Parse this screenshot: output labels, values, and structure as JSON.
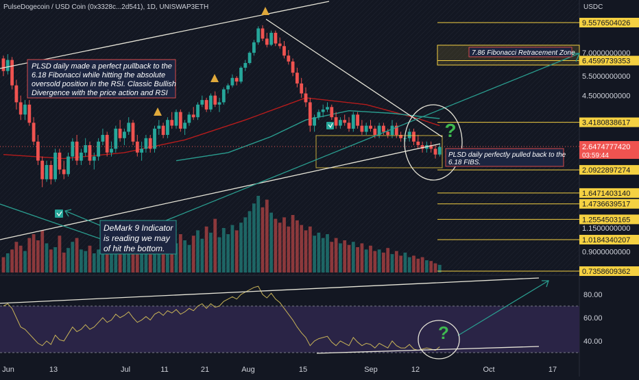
{
  "header": {
    "title": "PulseDogecoin / USD Coin (0x3328c...2d541), 1D, UNISWAP3ETH",
    "currency": "USDC"
  },
  "colors": {
    "background": "#131722",
    "up": "#26a69a",
    "down": "#ef5350",
    "fib_line": "#f5d142",
    "trend_line": "#e8e6d9",
    "ma_red": "#b71c1c",
    "ma_teal": "#2a9d8f",
    "rsi": "#c9b458",
    "rsi_band": "#2a2446",
    "annotation_bg": "#1c2540",
    "annotation_border": "#d84a4a",
    "price_tag": "#ef5350"
  },
  "annotations": {
    "note1": [
      "PLSD daily made a perfect pullback to the",
      "6.18 Fibonacci while hitting the absolute",
      "oversold position in the RSI. Classic Bullish",
      "Divergence with the price action and RSI"
    ],
    "note2": [
      "DeMark 9 Indicator",
      "is reading we may",
      "of hit the bottom."
    ],
    "note3": [
      "PLSD daily perfectly pulled back to the",
      "6.18 FIBS."
    ],
    "zone_label": "7.86 Fibonacci Retracement Zone",
    "question": "?"
  },
  "chart_data": {
    "type": "candlestick",
    "title": "PulseDogecoin / USD Coin (0x3328c...2d541), 1D, UNISWAP3ETH",
    "y_unit": "USDC",
    "y_scale": "log",
    "x_ticks": [
      "Jun",
      "13",
      "Jul",
      "11",
      "21",
      "Aug",
      "15",
      "Sep",
      "12",
      "Oct",
      "17"
    ],
    "fib_levels": [
      "9.5576504026",
      "6.4599739353",
      "3.4180838617",
      "2.0922897274",
      "1.6471403140",
      "1.4736639517",
      "1.2554503165",
      "1.0184340207",
      "0.7358609362"
    ],
    "price_axis_ticks": [
      "7.0000000000",
      "5.5000000000",
      "4.5000000000",
      "1.1500000000",
      "0.9000000000"
    ],
    "last_price": "2.6474777420",
    "countdown": "03:59:44",
    "rsi": {
      "ticks": [
        "80.00",
        "60.00",
        "40.00"
      ],
      "upper_band": 70,
      "lower_band": 30,
      "ylim": [
        25,
        90
      ]
    },
    "candles_ohlc": [
      [
        6.6,
        6.8,
        5.5,
        5.8
      ],
      [
        5.8,
        6.9,
        5.6,
        6.5
      ],
      [
        6.5,
        6.7,
        4.8,
        5.0
      ],
      [
        5.0,
        5.3,
        3.9,
        4.2
      ],
      [
        4.2,
        4.5,
        3.5,
        3.7
      ],
      [
        3.7,
        4.3,
        3.5,
        4.1
      ],
      [
        4.1,
        4.3,
        3.3,
        3.4
      ],
      [
        3.4,
        3.6,
        2.7,
        2.8
      ],
      [
        2.8,
        3.0,
        2.2,
        2.3
      ],
      [
        2.3,
        2.4,
        1.75,
        1.9
      ],
      [
        1.9,
        2.3,
        1.85,
        2.2
      ],
      [
        2.2,
        2.3,
        1.8,
        1.9
      ],
      [
        1.9,
        2.6,
        1.85,
        2.5
      ],
      [
        2.5,
        2.6,
        2.0,
        2.1
      ],
      [
        2.1,
        2.3,
        1.9,
        2.0
      ],
      [
        2.0,
        2.5,
        1.95,
        2.4
      ],
      [
        2.4,
        2.9,
        2.3,
        2.8
      ],
      [
        2.8,
        3.0,
        2.2,
        2.3
      ],
      [
        2.3,
        2.6,
        2.2,
        2.5
      ],
      [
        2.5,
        2.9,
        2.4,
        2.7
      ],
      [
        2.7,
        2.8,
        2.2,
        2.3
      ],
      [
        2.3,
        2.5,
        2.1,
        2.4
      ],
      [
        2.4,
        2.9,
        2.3,
        2.8
      ],
      [
        2.8,
        3.2,
        2.7,
        3.0
      ],
      [
        3.0,
        3.1,
        2.4,
        2.5
      ],
      [
        2.5,
        2.8,
        2.4,
        2.6
      ],
      [
        2.6,
        3.3,
        2.5,
        3.2
      ],
      [
        3.2,
        3.5,
        2.8,
        2.9
      ],
      [
        2.9,
        3.2,
        2.7,
        3.1
      ],
      [
        3.1,
        3.6,
        3.0,
        3.4
      ],
      [
        3.4,
        3.5,
        2.7,
        2.8
      ],
      [
        2.8,
        3.0,
        2.4,
        2.5
      ],
      [
        2.5,
        2.8,
        2.3,
        2.6
      ],
      [
        2.6,
        3.0,
        2.5,
        2.9
      ],
      [
        2.9,
        3.0,
        2.5,
        2.6
      ],
      [
        2.6,
        3.3,
        2.5,
        3.2
      ],
      [
        3.2,
        3.5,
        3.0,
        3.3
      ],
      [
        3.3,
        3.4,
        2.9,
        3.0
      ],
      [
        3.0,
        3.6,
        2.9,
        3.5
      ],
      [
        3.5,
        3.8,
        3.2,
        3.3
      ],
      [
        3.3,
        3.9,
        3.2,
        3.8
      ],
      [
        3.8,
        3.9,
        3.1,
        3.2
      ],
      [
        3.2,
        3.5,
        3.0,
        3.4
      ],
      [
        3.4,
        3.8,
        3.3,
        3.7
      ],
      [
        3.7,
        4.0,
        3.5,
        3.6
      ],
      [
        3.6,
        4.2,
        3.5,
        4.1
      ],
      [
        4.1,
        4.5,
        4.0,
        4.3
      ],
      [
        4.3,
        4.4,
        3.8,
        3.9
      ],
      [
        3.9,
        4.6,
        3.8,
        4.5
      ],
      [
        4.5,
        4.7,
        4.0,
        4.1
      ],
      [
        4.1,
        4.4,
        3.8,
        4.2
      ],
      [
        4.2,
        4.9,
        4.1,
        4.8
      ],
      [
        4.8,
        5.1,
        4.6,
        5.0
      ],
      [
        5.0,
        5.6,
        4.9,
        5.4
      ],
      [
        5.4,
        5.5,
        5.0,
        5.2
      ],
      [
        5.2,
        6.1,
        5.1,
        6.0
      ],
      [
        6.0,
        6.5,
        5.8,
        6.3
      ],
      [
        6.3,
        7.1,
        6.2,
        7.0
      ],
      [
        7.0,
        8.0,
        6.8,
        7.8
      ],
      [
        7.8,
        9.2,
        7.6,
        9.0
      ],
      [
        9.0,
        9.3,
        7.9,
        8.1
      ],
      [
        8.1,
        8.6,
        7.4,
        7.6
      ],
      [
        7.6,
        8.8,
        7.5,
        8.6
      ],
      [
        8.6,
        8.8,
        7.5,
        7.7
      ],
      [
        7.7,
        8.2,
        7.3,
        7.5
      ],
      [
        7.5,
        7.9,
        6.6,
        6.8
      ],
      [
        6.8,
        7.2,
        6.2,
        6.4
      ],
      [
        6.4,
        6.6,
        5.5,
        5.7
      ],
      [
        5.7,
        6.0,
        4.9,
        5.1
      ],
      [
        5.1,
        5.4,
        4.4,
        4.6
      ],
      [
        4.6,
        4.9,
        4.0,
        4.2
      ],
      [
        4.2,
        4.4,
        3.1,
        3.3
      ],
      [
        3.3,
        3.7,
        3.1,
        3.6
      ],
      [
        3.6,
        3.9,
        3.5,
        3.8
      ],
      [
        3.8,
        4.1,
        3.6,
        3.9
      ],
      [
        3.9,
        4.2,
        3.8,
        4.0
      ],
      [
        4.0,
        4.1,
        3.5,
        3.6
      ],
      [
        3.6,
        3.8,
        3.2,
        3.3
      ],
      [
        3.3,
        3.6,
        3.2,
        3.5
      ],
      [
        3.5,
        3.7,
        3.3,
        3.4
      ],
      [
        3.4,
        3.6,
        3.1,
        3.2
      ],
      [
        3.2,
        3.8,
        3.1,
        3.7
      ],
      [
        3.7,
        3.8,
        3.2,
        3.3
      ],
      [
        3.3,
        3.5,
        3.0,
        3.1
      ],
      [
        3.1,
        3.4,
        3.0,
        3.3
      ],
      [
        3.3,
        3.5,
        3.1,
        3.2
      ],
      [
        3.2,
        3.3,
        2.9,
        3.0
      ],
      [
        3.0,
        3.4,
        2.9,
        3.3
      ],
      [
        3.3,
        3.4,
        3.0,
        3.1
      ],
      [
        3.1,
        3.2,
        2.9,
        3.0
      ],
      [
        3.0,
        3.5,
        2.9,
        3.3
      ],
      [
        3.3,
        3.4,
        2.9,
        3.0
      ],
      [
        3.0,
        3.1,
        2.8,
        2.9
      ],
      [
        2.9,
        3.0,
        2.8,
        2.9
      ],
      [
        2.9,
        3.2,
        2.8,
        3.1
      ],
      [
        3.1,
        3.2,
        2.7,
        2.8
      ],
      [
        2.8,
        3.0,
        2.6,
        2.7
      ],
      [
        2.7,
        2.8,
        2.5,
        2.6
      ],
      [
        2.6,
        2.8,
        2.5,
        2.7
      ],
      [
        2.7,
        2.8,
        2.5,
        2.6
      ],
      [
        2.6,
        2.7,
        2.35,
        2.45
      ],
      [
        2.45,
        2.75,
        2.4,
        2.65
      ]
    ],
    "moving_averages": {
      "ma_red": [
        [
          0,
          2.45
        ],
        [
          14,
          2.35
        ],
        [
          28,
          2.5
        ],
        [
          42,
          2.85
        ],
        [
          56,
          3.5
        ],
        [
          70,
          4.4
        ],
        [
          84,
          4.1
        ],
        [
          96,
          3.55
        ],
        [
          101,
          3.3
        ]
      ],
      "ma_teal": [
        [
          40,
          2.3
        ],
        [
          52,
          2.5
        ],
        [
          62,
          2.95
        ],
        [
          70,
          3.5
        ],
        [
          80,
          3.85
        ],
        [
          90,
          3.75
        ],
        [
          101,
          3.55
        ]
      ]
    },
    "volume": [
      0.2,
      0.25,
      0.3,
      0.4,
      0.35,
      0.28,
      0.45,
      0.5,
      0.42,
      0.55,
      0.38,
      0.3,
      0.33,
      0.48,
      0.26,
      0.32,
      0.4,
      0.45,
      0.3,
      0.28,
      0.35,
      0.25,
      0.3,
      0.38,
      0.42,
      0.28,
      0.33,
      0.4,
      0.3,
      0.36,
      0.45,
      0.38,
      0.3,
      0.35,
      0.28,
      0.32,
      0.4,
      0.35,
      0.3,
      0.45,
      0.38,
      0.5,
      0.42,
      0.36,
      0.48,
      0.55,
      0.44,
      0.6,
      0.52,
      0.7,
      0.46,
      0.58,
      0.5,
      0.62,
      0.55,
      0.65,
      0.72,
      0.8,
      0.9,
      1.0,
      0.85,
      0.95,
      0.78,
      0.7,
      0.65,
      0.72,
      0.6,
      0.75,
      0.68,
      0.62,
      0.55,
      0.6,
      0.48,
      0.52,
      0.45,
      0.5,
      0.4,
      0.45,
      0.38,
      0.42,
      0.36,
      0.4,
      0.33,
      0.38,
      0.3,
      0.35,
      0.28,
      0.3,
      0.26,
      0.32,
      0.24,
      0.28,
      0.22,
      0.26,
      0.2,
      0.22,
      0.18,
      0.2,
      0.16,
      0.15,
      0.12,
      0.1
    ],
    "rsi_series": [
      70,
      72,
      68,
      60,
      52,
      50,
      46,
      42,
      38,
      36,
      40,
      37,
      45,
      41,
      40,
      46,
      52,
      48,
      50,
      54,
      50,
      52,
      56,
      60,
      56,
      58,
      63,
      60,
      62,
      65,
      60,
      56,
      58,
      61,
      58,
      63,
      65,
      62,
      66,
      64,
      67,
      63,
      65,
      68,
      66,
      70,
      72,
      68,
      72,
      69,
      70,
      74,
      76,
      78,
      76,
      80,
      82,
      84,
      86,
      87,
      80,
      77,
      81,
      76,
      73,
      68,
      63,
      58,
      52,
      47,
      43,
      36,
      40,
      42,
      43,
      44,
      39,
      36,
      40,
      38,
      36,
      43,
      39,
      36,
      38,
      37,
      34,
      38,
      36,
      34,
      40,
      36,
      34,
      34,
      37,
      33,
      32,
      33,
      34,
      33,
      32,
      35
    ]
  }
}
